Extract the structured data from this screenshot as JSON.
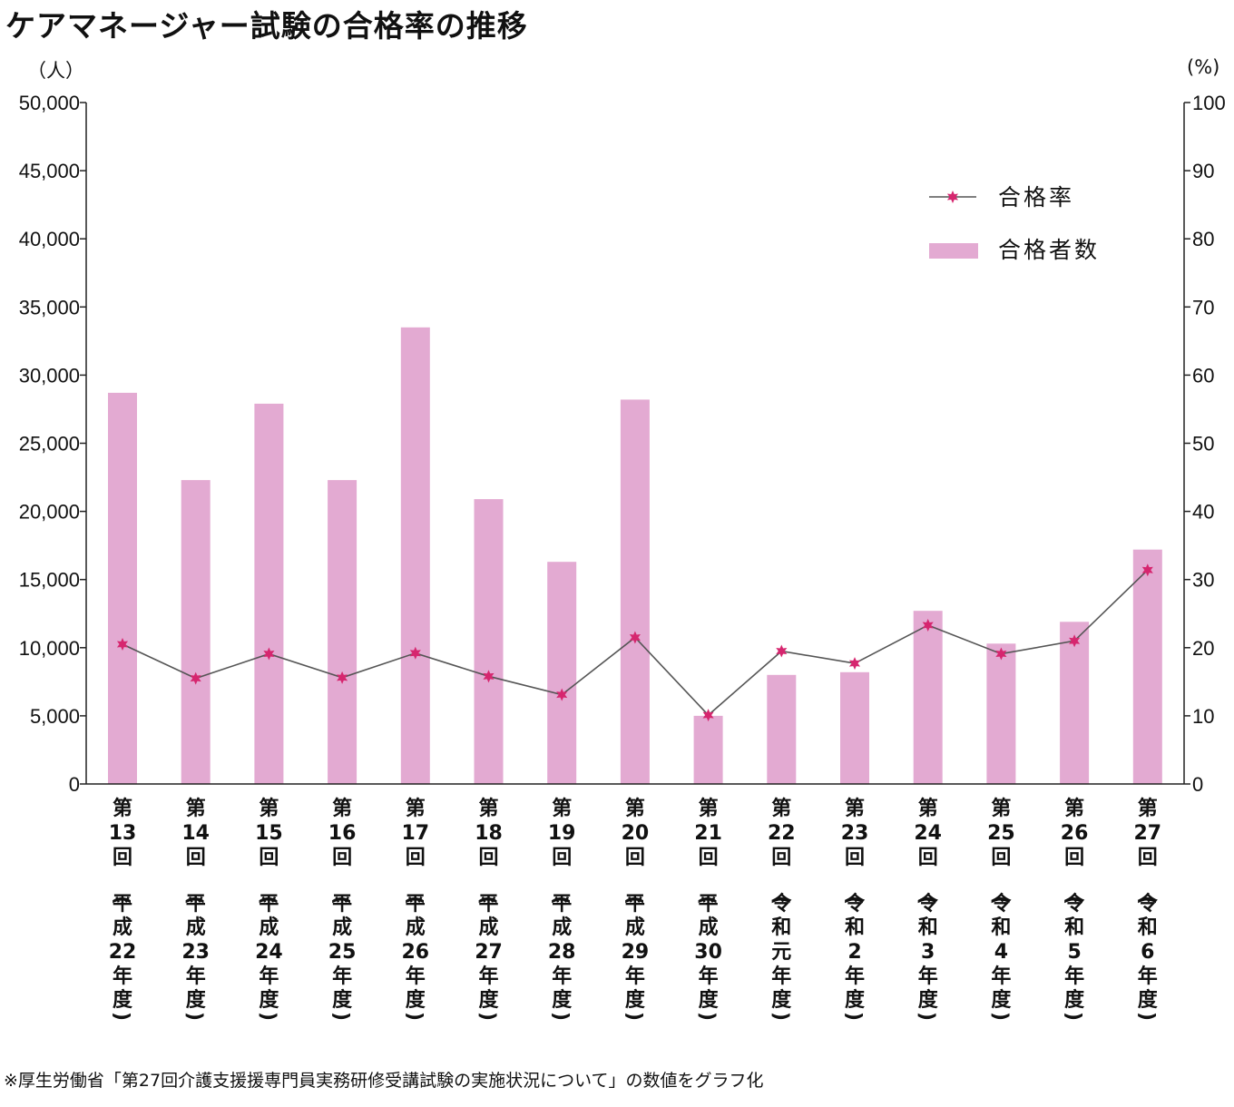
{
  "chart_data": {
    "type": "bar",
    "title": "ケアマネージャー試験の合格率の推移",
    "y_left_unit": "（人）",
    "y_right_unit": "(%)",
    "ylim_left": [
      0,
      50000
    ],
    "ylim_right": [
      0,
      100
    ],
    "yticks_left": [
      "0",
      "5,000",
      "10,000",
      "15,000",
      "20,000",
      "25,000",
      "30,000",
      "35,000",
      "40,000",
      "45,000",
      "50,000"
    ],
    "yticks_right": [
      "0",
      "10",
      "20",
      "30",
      "40",
      "50",
      "60",
      "70",
      "80",
      "90",
      "100"
    ],
    "categories": [
      {
        "round": [
          "第",
          "13",
          "回"
        ],
        "era": [
          "平",
          "成",
          "22",
          "年",
          "度"
        ]
      },
      {
        "round": [
          "第",
          "14",
          "回"
        ],
        "era": [
          "平",
          "成",
          "23",
          "年",
          "度"
        ]
      },
      {
        "round": [
          "第",
          "15",
          "回"
        ],
        "era": [
          "平",
          "成",
          "24",
          "年",
          "度"
        ]
      },
      {
        "round": [
          "第",
          "16",
          "回"
        ],
        "era": [
          "平",
          "成",
          "25",
          "年",
          "度"
        ]
      },
      {
        "round": [
          "第",
          "17",
          "回"
        ],
        "era": [
          "平",
          "成",
          "26",
          "年",
          "度"
        ]
      },
      {
        "round": [
          "第",
          "18",
          "回"
        ],
        "era": [
          "平",
          "成",
          "27",
          "年",
          "度"
        ]
      },
      {
        "round": [
          "第",
          "19",
          "回"
        ],
        "era": [
          "平",
          "成",
          "28",
          "年",
          "度"
        ]
      },
      {
        "round": [
          "第",
          "20",
          "回"
        ],
        "era": [
          "平",
          "成",
          "29",
          "年",
          "度"
        ]
      },
      {
        "round": [
          "第",
          "21",
          "回"
        ],
        "era": [
          "平",
          "成",
          "30",
          "年",
          "度"
        ]
      },
      {
        "round": [
          "第",
          "22",
          "回"
        ],
        "era": [
          "令",
          "和",
          "元",
          "年",
          "度"
        ]
      },
      {
        "round": [
          "第",
          "23",
          "回"
        ],
        "era": [
          "令",
          "和",
          "2",
          "年",
          "度"
        ]
      },
      {
        "round": [
          "第",
          "24",
          "回"
        ],
        "era": [
          "令",
          "和",
          "3",
          "年",
          "度"
        ]
      },
      {
        "round": [
          "第",
          "25",
          "回"
        ],
        "era": [
          "令",
          "和",
          "4",
          "年",
          "度"
        ]
      },
      {
        "round": [
          "第",
          "26",
          "回"
        ],
        "era": [
          "令",
          "和",
          "5",
          "年",
          "度"
        ]
      },
      {
        "round": [
          "第",
          "27",
          "回"
        ],
        "era": [
          "令",
          "和",
          "6",
          "年",
          "度"
        ]
      }
    ],
    "series": [
      {
        "name": "合格者数",
        "type": "bar",
        "axis": "left",
        "color": "#e3aad2",
        "values": [
          28700,
          22300,
          27900,
          22300,
          33500,
          20900,
          16300,
          28200,
          5000,
          8000,
          8200,
          12700,
          10300,
          11900,
          17200
        ]
      },
      {
        "name": "合格率",
        "type": "line",
        "axis": "right",
        "color": "#d6266f",
        "line_color": "#555555",
        "values": [
          20.5,
          15.5,
          19.1,
          15.6,
          19.2,
          15.8,
          13.1,
          21.5,
          10.1,
          19.5,
          17.7,
          23.3,
          19.1,
          21.0,
          31.4
        ]
      }
    ],
    "legend": {
      "position": "top-right",
      "items": [
        {
          "label": "合格率",
          "marker": "line-star"
        },
        {
          "label": "合格者数",
          "marker": "bar"
        }
      ]
    }
  },
  "footnote": "※厚生労働省「第27回介護支援援専門員実務研修受講試験の実施状況について」の数値をグラフ化"
}
